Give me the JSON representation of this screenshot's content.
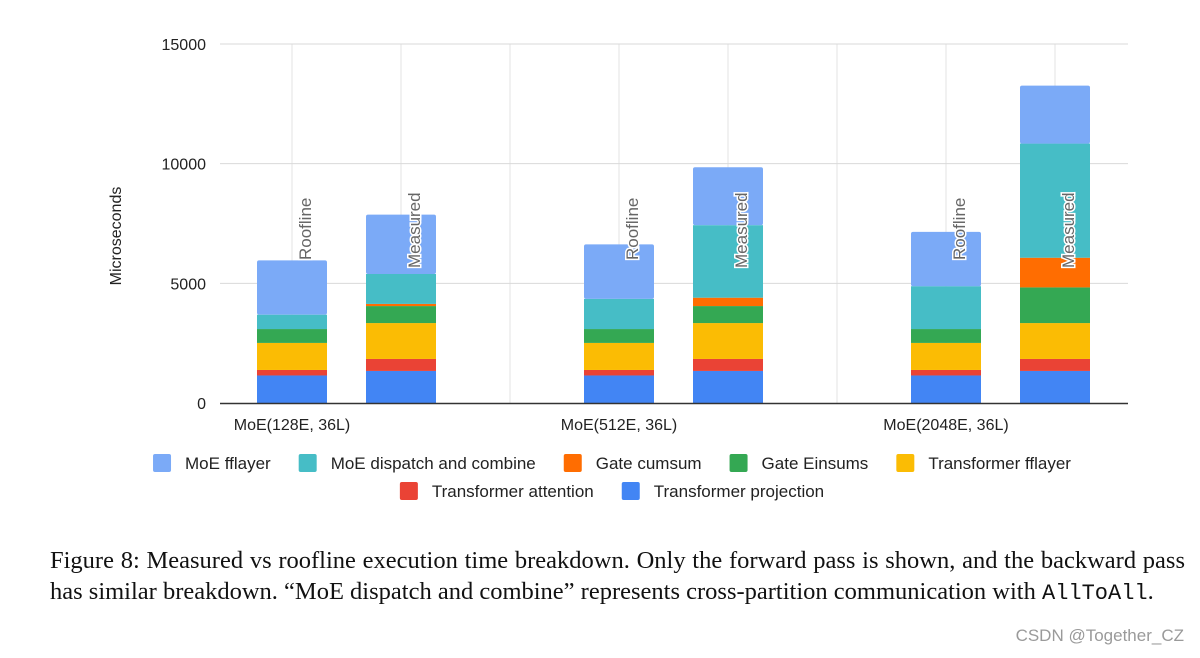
{
  "chart_data": {
    "type": "bar",
    "stacked": true,
    "title": "",
    "xlabel": "",
    "ylabel": "Microseconds",
    "ylim": [
      0,
      15000
    ],
    "yticks": [
      0,
      5000,
      10000,
      15000
    ],
    "grid": true,
    "legend_position": "bottom",
    "series_order": [
      "Transformer projection",
      "Transformer attention",
      "Transformer fflayer",
      "Gate Einsums",
      "Gate cumsum",
      "MoE dispatch and combine",
      "MoE fflayer"
    ],
    "legend": [
      {
        "name": "MoE fflayer",
        "color": "#7baaf7"
      },
      {
        "name": "MoE dispatch and combine",
        "color": "#46bdc6"
      },
      {
        "name": "Gate cumsum",
        "color": "#ff6d01"
      },
      {
        "name": "Gate Einsums",
        "color": "#34a853"
      },
      {
        "name": "Transformer fflayer",
        "color": "#fbbc04"
      },
      {
        "name": "Transformer attention",
        "color": "#ea4335"
      },
      {
        "name": "Transformer projection",
        "color": "#4285f4"
      }
    ],
    "groups": [
      {
        "label": "MoE(128E, 36L)",
        "bars": [
          {
            "name": "Roofline",
            "values": [
              1150,
              230,
              1130,
              580,
              0,
              600,
              2270
            ]
          },
          {
            "name": "Measured",
            "values": [
              1340,
              500,
              1500,
              710,
              90,
              1250,
              2480
            ]
          }
        ]
      },
      {
        "label": "MoE(512E, 36L)",
        "bars": [
          {
            "name": "Roofline",
            "values": [
              1150,
              230,
              1130,
              580,
              0,
              1260,
              2280
            ]
          },
          {
            "name": "Measured",
            "values": [
              1340,
              500,
              1500,
              710,
              350,
              3030,
              2420
            ]
          }
        ]
      },
      {
        "label": "MoE(2048E, 36L)",
        "bars": [
          {
            "name": "Roofline",
            "values": [
              1150,
              230,
              1130,
              580,
              0,
              1790,
              2270
            ]
          },
          {
            "name": "Measured",
            "values": [
              1340,
              500,
              1500,
              1490,
              1240,
              4770,
              2420
            ]
          }
        ]
      }
    ]
  },
  "caption": {
    "text": "Figure 8: Measured vs roofline execution time breakdown. Only the forward pass is shown, and the backward pass has similar breakdown. “MoE dispatch and combine” represents cross-partition communication with ",
    "code": "AllToAll",
    "end": "."
  },
  "watermark": "CSDN @Together_CZ"
}
